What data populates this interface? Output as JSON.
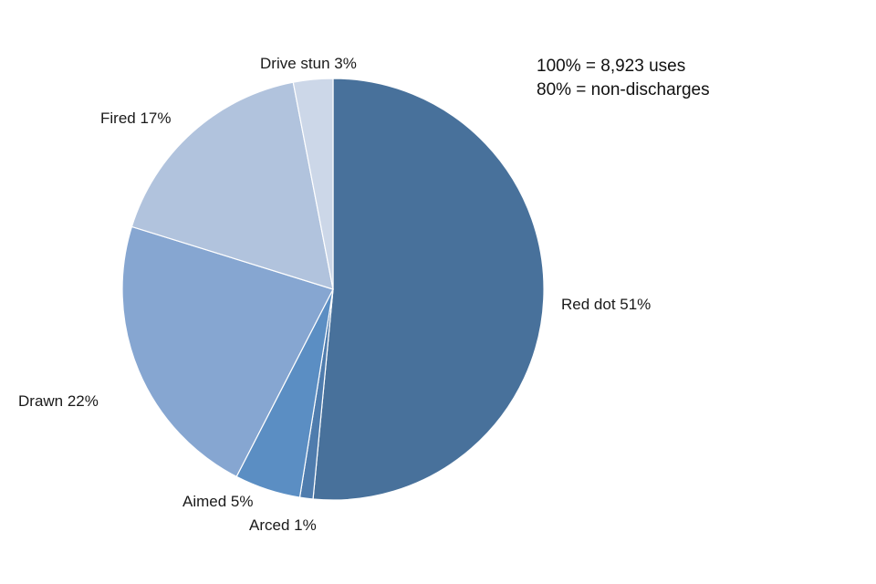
{
  "chart_data": {
    "type": "pie",
    "title": "",
    "start_angle_deg": 0,
    "direction": "clockwise",
    "slices": [
      {
        "label": "Red dot 51%",
        "category": "Red dot",
        "value": 51,
        "color": "#48719b"
      },
      {
        "label": "Arced 1%",
        "category": "Arced",
        "value": 1,
        "color": "#4f7cad"
      },
      {
        "label": "Aimed 5%",
        "category": "Aimed",
        "value": 5,
        "color": "#5b8ec3"
      },
      {
        "label": "Drawn 22%",
        "category": "Drawn",
        "value": 22,
        "color": "#86a6d1"
      },
      {
        "label": "Fired 17%",
        "category": "Fired",
        "value": 17,
        "color": "#b1c3dd"
      },
      {
        "label": "Drive stun 3%",
        "category": "Drive stun",
        "value": 3,
        "color": "#ccd7e8"
      }
    ],
    "annotations": [
      "100% = 8,923 uses",
      "80% = non-discharges"
    ]
  }
}
